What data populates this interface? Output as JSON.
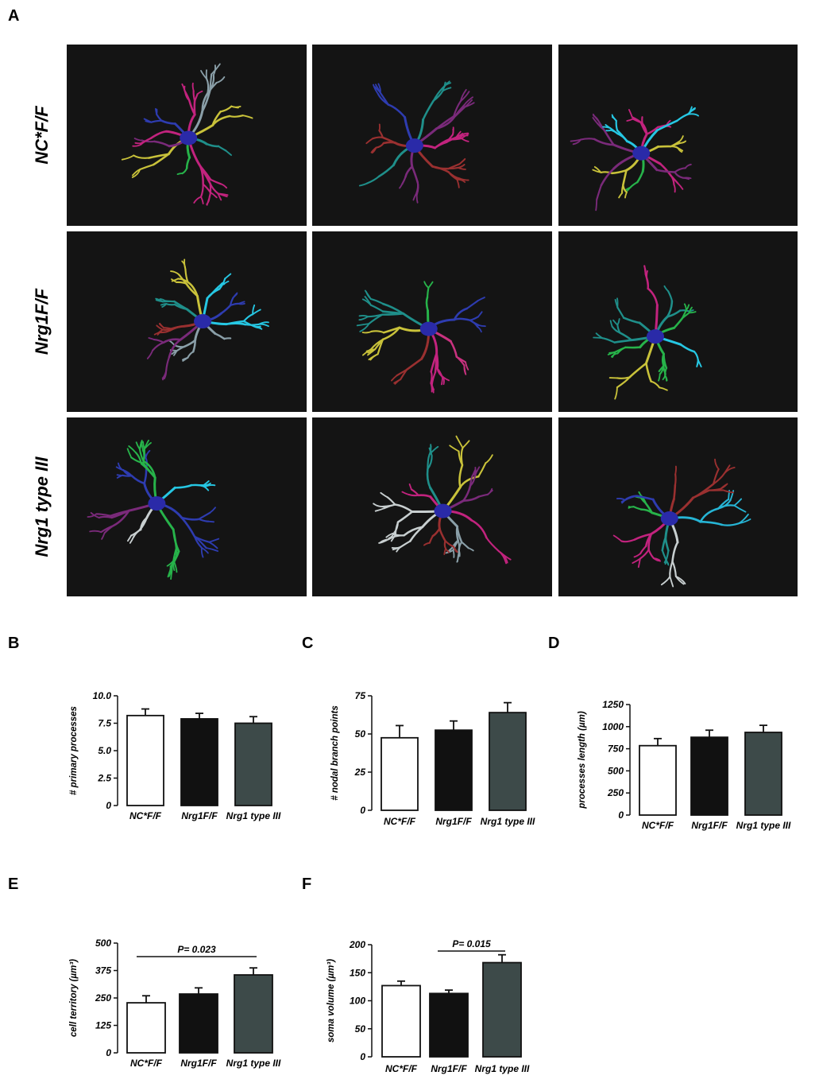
{
  "panel_a": {
    "letter": "A",
    "rows": [
      "NC*F/F",
      "Nrg1F/F",
      "Nrg1 type III"
    ],
    "cell_colors": [
      [
        "#1f8f8a",
        "#c2237e",
        "#c2237e"
      ],
      [
        "#26c7e3",
        "#c9327f",
        "#26c7e3"
      ],
      [
        "#2e3cb0",
        "#c2237e",
        "#26b5d5"
      ]
    ],
    "soma_color": "#2a2aa8",
    "tile_background": "#141414"
  },
  "chart_data": [
    {
      "id": "B",
      "type": "bar",
      "categories": [
        "NC*F/F",
        "Nrg1F/F",
        "Nrg1 type III"
      ],
      "values": [
        8.2,
        7.9,
        7.5
      ],
      "errors": [
        0.6,
        0.5,
        0.6
      ],
      "ylabel": "# primary processes",
      "ylim": [
        0,
        10
      ],
      "yticks": [
        "0",
        "2.5",
        "5.0",
        "7.5",
        "10.0"
      ],
      "bar_colors": [
        "#ffffff",
        "#111111",
        "#3d4a49"
      ]
    },
    {
      "id": "C",
      "type": "bar",
      "categories": [
        "NC*F/F",
        "Nrg1F/F",
        "Nrg1 type III"
      ],
      "values": [
        47.5,
        52.5,
        64
      ],
      "errors": [
        8,
        6,
        6.5
      ],
      "ylabel": "# nodal branch points",
      "ylim": [
        0,
        75
      ],
      "yticks": [
        "0",
        "25",
        "50",
        "75"
      ],
      "bar_colors": [
        "#ffffff",
        "#111111",
        "#3d4a49"
      ]
    },
    {
      "id": "D",
      "type": "bar",
      "categories": [
        "NC*F/F",
        "Nrg1F/F",
        "Nrg1 type III"
      ],
      "values": [
        785,
        880,
        935
      ],
      "errors": [
        80,
        80,
        80
      ],
      "ylabel": "processes length (µm)",
      "ylim": [
        0,
        1250
      ],
      "yticks": [
        "0",
        "250",
        "500",
        "750",
        "1000",
        "1250"
      ],
      "bar_colors": [
        "#ffffff",
        "#111111",
        "#3d4a49"
      ]
    },
    {
      "id": "E",
      "type": "bar",
      "categories": [
        "NC*F/F",
        "Nrg1F/F",
        "Nrg1 type III"
      ],
      "values": [
        228,
        268,
        355
      ],
      "errors": [
        32,
        28,
        32
      ],
      "ylabel": "cell territory (µm³)",
      "ylim": [
        0,
        500
      ],
      "yticks": [
        "0",
        "125",
        "250",
        "375",
        "500"
      ],
      "bar_colors": [
        "#ffffff",
        "#111111",
        "#3d4a49"
      ],
      "annotation": {
        "text": "P= 0.023",
        "from": 0,
        "to": 2
      }
    },
    {
      "id": "F",
      "type": "bar",
      "categories": [
        "NC*F/F",
        "Nrg1F/F",
        "Nrg1 type III"
      ],
      "values": [
        127,
        113,
        168
      ],
      "errors": [
        8,
        6,
        14
      ],
      "ylabel": "soma volume (µm³)",
      "ylim": [
        0,
        200
      ],
      "yticks": [
        "0",
        "50",
        "100",
        "150",
        "200"
      ],
      "bar_colors": [
        "#ffffff",
        "#111111",
        "#3d4a49"
      ],
      "annotation": {
        "text": "P= 0.015",
        "from": 1,
        "to": 2
      }
    }
  ]
}
